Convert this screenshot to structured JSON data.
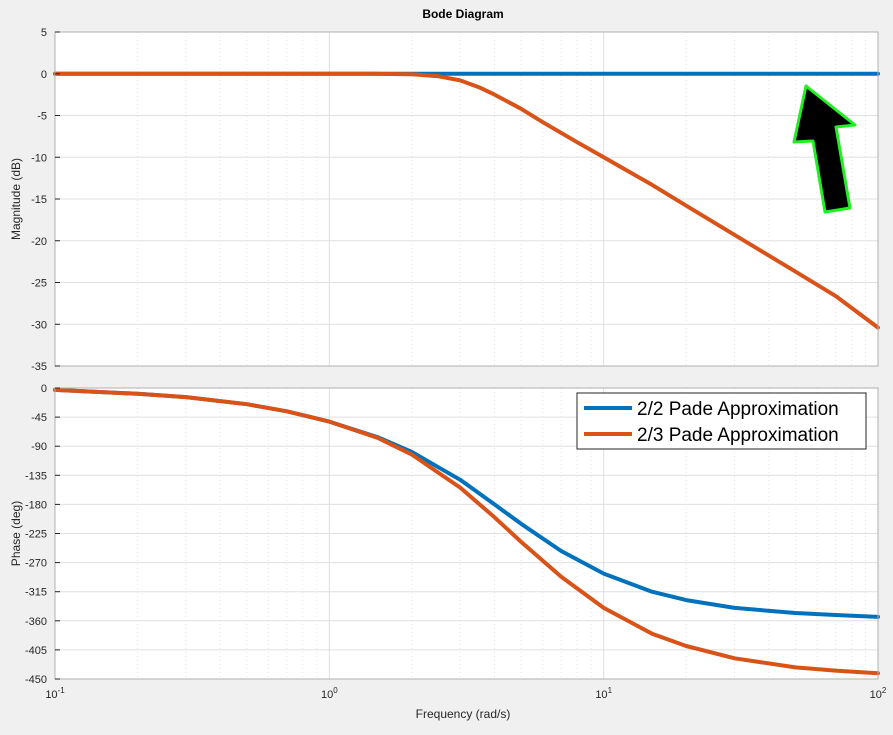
{
  "chart_data": {
    "type": "line",
    "title": "Bode Diagram",
    "xlabel": "Frequency  (rad/s)",
    "xscale": "log",
    "xlim": [
      0.1,
      100
    ],
    "x_ticks": [
      {
        "value": 0.1,
        "base": "10",
        "exp": "-1"
      },
      {
        "value": 1,
        "base": "10",
        "exp": "0"
      },
      {
        "value": 10,
        "base": "10",
        "exp": "1"
      },
      {
        "value": 100,
        "base": "10",
        "exp": "2"
      }
    ],
    "grid": true,
    "background": "#ffffff",
    "figure_background": "#f0f0f0",
    "panels": [
      {
        "id": "magnitude",
        "ylabel": "Magnitude (dB)",
        "ylim": [
          -35,
          5
        ],
        "yticks": [
          5,
          0,
          -5,
          -10,
          -15,
          -20,
          -25,
          -30,
          -35
        ],
        "series": [
          {
            "name": "2/2 Pade Approximation",
            "color": "#0072bd",
            "points": [
              [
                0.1,
                0
              ],
              [
                1,
                0
              ],
              [
                10,
                0
              ],
              [
                100,
                0
              ]
            ]
          },
          {
            "name": "2/3 Pade Approximation",
            "color": "#d95319",
            "points": [
              [
                0.1,
                0
              ],
              [
                0.5,
                0
              ],
              [
                1,
                0
              ],
              [
                1.5,
                0
              ],
              [
                2,
                -0.05
              ],
              [
                2.5,
                -0.3
              ],
              [
                3,
                -0.8
              ],
              [
                3.5,
                -1.6
              ],
              [
                4,
                -2.5
              ],
              [
                5,
                -4.2
              ],
              [
                6,
                -5.8
              ],
              [
                8,
                -8.2
              ],
              [
                10,
                -10
              ],
              [
                15,
                -13.3
              ],
              [
                20,
                -15.8
              ],
              [
                30,
                -19.3
              ],
              [
                50,
                -23.7
              ],
              [
                70,
                -26.6
              ],
              [
                100,
                -30.4
              ]
            ]
          }
        ]
      },
      {
        "id": "phase",
        "ylabel": "Phase (deg)",
        "ylim": [
          -450,
          0
        ],
        "yticks": [
          0,
          -45,
          -90,
          -135,
          -180,
          -225,
          -270,
          -315,
          -360,
          -405,
          -450
        ],
        "legend": {
          "position": "top-right"
        },
        "series": [
          {
            "name": "2/2 Pade Approximation",
            "color": "#0072bd",
            "points": [
              [
                0.1,
                -3
              ],
              [
                0.2,
                -9
              ],
              [
                0.3,
                -14
              ],
              [
                0.5,
                -25
              ],
              [
                0.7,
                -36
              ],
              [
                1,
                -52
              ],
              [
                1.5,
                -76
              ],
              [
                2,
                -99
              ],
              [
                3,
                -142
              ],
              [
                4,
                -180
              ],
              [
                5,
                -210
              ],
              [
                7,
                -252
              ],
              [
                10,
                -287
              ],
              [
                15,
                -315
              ],
              [
                20,
                -328
              ],
              [
                30,
                -340
              ],
              [
                50,
                -348
              ],
              [
                70,
                -351
              ],
              [
                100,
                -354
              ]
            ]
          },
          {
            "name": "2/3 Pade Approximation",
            "color": "#d95319",
            "points": [
              [
                0.1,
                -3
              ],
              [
                0.2,
                -9
              ],
              [
                0.3,
                -14
              ],
              [
                0.5,
                -25
              ],
              [
                0.7,
                -36
              ],
              [
                1,
                -52
              ],
              [
                1.5,
                -77
              ],
              [
                2,
                -103
              ],
              [
                3,
                -154
              ],
              [
                4,
                -200
              ],
              [
                5,
                -238
              ],
              [
                7,
                -292
              ],
              [
                10,
                -340
              ],
              [
                15,
                -380
              ],
              [
                20,
                -399
              ],
              [
                30,
                -418
              ],
              [
                50,
                -432
              ],
              [
                70,
                -437
              ],
              [
                100,
                -441
              ]
            ]
          }
        ]
      }
    ],
    "annotation": {
      "type": "arrow",
      "fill": "#000000",
      "stroke": "#22ee22",
      "direction": "up"
    }
  }
}
